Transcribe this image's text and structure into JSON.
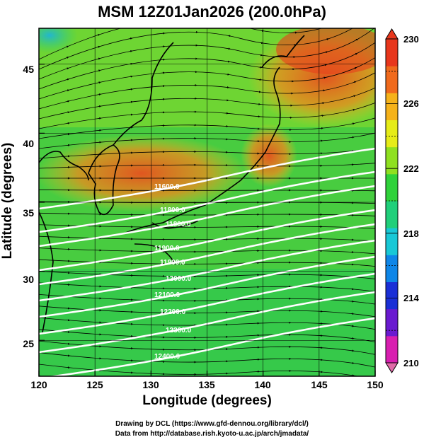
{
  "title": "MSM 12Z01Jan2026 (200.0hPa)",
  "x_axis": {
    "label": "Longitude (degrees)",
    "ticks": [
      "120",
      "125",
      "130",
      "135",
      "140",
      "145",
      "150"
    ],
    "range": [
      120,
      150
    ]
  },
  "y_axis": {
    "label": "Latitude  (degrees)",
    "ticks": [
      "25",
      "30",
      "35",
      "40",
      "45"
    ],
    "range": [
      22.4,
      47.6
    ]
  },
  "colorbar": {
    "range": [
      210,
      230
    ],
    "labels": [
      "210",
      "214",
      "218",
      "222",
      "226",
      "230"
    ],
    "colors": [
      "#d81fb0",
      "#6a1ad0",
      "#1a2fd6",
      "#0e86e8",
      "#18c8d6",
      "#20cf7a",
      "#2fd23a",
      "#8fe020",
      "#e6ec18",
      "#f5b21a",
      "#f06a1c",
      "#e8361c"
    ]
  },
  "field": {
    "variable": "temperature-shaded",
    "base_color": "#4fcf3a",
    "warm_core_color": "#e8501e"
  },
  "contours": {
    "color": "#ffffff",
    "labels": [
      "11600.0",
      "11800.0",
      "11800.0",
      "11900.0",
      "11900.0",
      "12000.0",
      "12100.0",
      "12200.0",
      "12300.0",
      "12400.0"
    ]
  },
  "credits": [
    "Drawing by DCL (https://www.gfd-dennou.org/library/dcl/)",
    "Data from http://database.rish.kyoto-u.ac.jp/arch/jmadata/"
  ]
}
